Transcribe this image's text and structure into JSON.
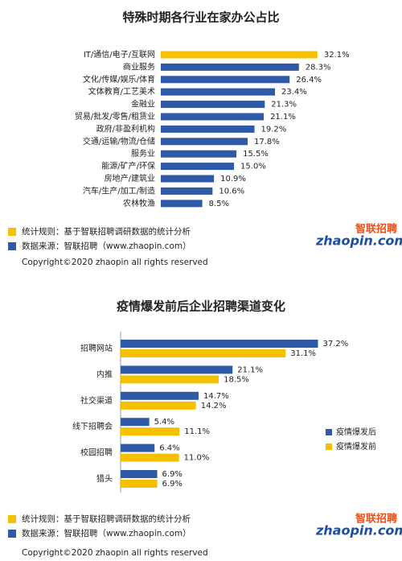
{
  "chart_data": [
    {
      "type": "bar",
      "orientation": "horizontal",
      "title": "特殊时期各行业在家办公占比",
      "categories": [
        "IT/通信/电子/互联网",
        "商业服务",
        "文化/传媒/娱乐/体育",
        "文体教育/工艺美术",
        "金融业",
        "贸易/批发/零售/租赁业",
        "政府/非盈利机构",
        "交通/运输/物流/仓储",
        "服务业",
        "能源/矿产/环保",
        "房地产/建筑业",
        "汽车/生产/加工/制造",
        "农林牧渔"
      ],
      "values": [
        32.1,
        28.3,
        26.4,
        23.4,
        21.3,
        21.1,
        19.2,
        17.8,
        15.5,
        15.0,
        10.9,
        10.6,
        8.5
      ],
      "value_labels": [
        "32.1%",
        "28.3%",
        "26.4%",
        "23.4%",
        "21.3%",
        "21.1%",
        "19.2%",
        "17.8%",
        "15.5%",
        "15.0%",
        "10.9%",
        "10.6%",
        "8.5%"
      ],
      "colors": [
        "#f5c000",
        "#2e5aa8",
        "#2e5aa8",
        "#2e5aa8",
        "#2e5aa8",
        "#2e5aa8",
        "#2e5aa8",
        "#2e5aa8",
        "#2e5aa8",
        "#2e5aa8",
        "#2e5aa8",
        "#2e5aa8",
        "#2e5aa8"
      ]
    },
    {
      "type": "grouped-bar",
      "orientation": "horizontal",
      "title": "疫情爆发前后企业招聘渠道变化",
      "categories": [
        "招聘网站",
        "内推",
        "社交渠道",
        "线下招聘会",
        "校园招聘",
        "猎头"
      ],
      "series": [
        {
          "name": "疫情爆发后",
          "color": "#2e5aa8",
          "values": [
            37.2,
            21.1,
            14.7,
            5.4,
            6.4,
            6.9
          ],
          "value_labels": [
            "37.2%",
            "21.1%",
            "14.7%",
            "5.4%",
            "6.4%",
            "6.9%"
          ]
        },
        {
          "name": "疫情爆发前",
          "color": "#f5c000",
          "values": [
            31.1,
            18.5,
            14.2,
            11.1,
            11.0,
            6.9
          ],
          "value_labels": [
            "31.1%",
            "18.5%",
            "14.2%",
            "11.1%",
            "11.0%",
            "6.9%"
          ]
        }
      ],
      "legend": "right"
    }
  ],
  "footers": [
    {
      "rule": "统计规则：基于智联招聘调研数据的统计分析",
      "source": "数据来源：智联招聘（www.zhaopin.com）",
      "copyright": "Copyright©2020 zhaopin all rights reserved",
      "logo_cn": "智联招聘",
      "logo_en": "zhaopin.com"
    },
    {
      "rule": "统计规则：基于智联招聘调研数据的统计分析",
      "source": "数据来源：智联招聘（www.zhaopin.com）",
      "copyright": "Copyright©2020 zhaopin all rights reserved",
      "logo_cn": "智联招聘",
      "logo_en": "zhaopin.com"
    }
  ]
}
